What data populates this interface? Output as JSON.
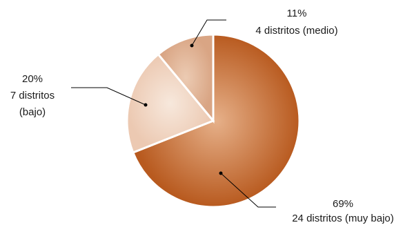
{
  "chart_data": {
    "type": "pie",
    "title": "",
    "slices": [
      {
        "category": "muy bajo",
        "percent": 69,
        "count": 24,
        "label_pct": "69%",
        "label_text": "24 distritos (muy bajo)",
        "color_outer": "#b85a1f",
        "color_inner": "#e6b089"
      },
      {
        "category": "bajo",
        "percent": 20,
        "count": 7,
        "label_pct": "20%",
        "label_text_line1": "7 distritos",
        "label_text_line2": "(bajo)",
        "color_outer": "#ecc9b2",
        "color_inner": "#f7e8dc"
      },
      {
        "category": "medio",
        "percent": 11,
        "count": 4,
        "label_pct": "11%",
        "label_text": "4 distritos (medio)",
        "color_outer": "#d9a584",
        "color_inner": "#eccbb3"
      }
    ]
  }
}
